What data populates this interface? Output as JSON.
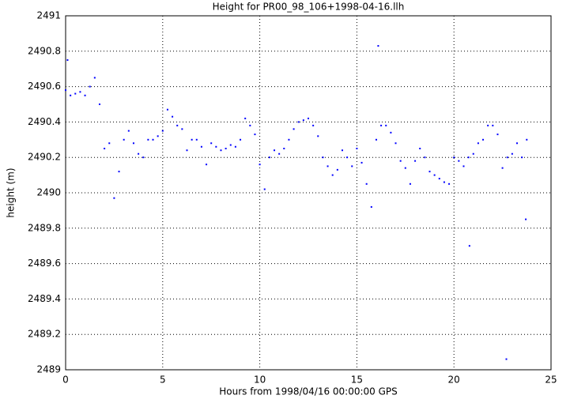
{
  "chart_data": {
    "type": "scatter",
    "title": "Height for PR00_98_106+1998-04-16.llh",
    "xlabel": "Hours from 1998/04/16 00:00:00 GPS",
    "ylabel": "height (m)",
    "xlim": [
      0,
      25
    ],
    "xticks": [
      0,
      5,
      10,
      15,
      20,
      25
    ],
    "ylim": [
      2489,
      2491
    ],
    "yticks": [
      2489,
      2489.2,
      2489.4,
      2489.6,
      2489.8,
      2490,
      2490.2,
      2490.4,
      2490.6,
      2490.8,
      2491
    ],
    "grid": true,
    "color": "#0000ff",
    "x": [
      0,
      0.25,
      0.5,
      0.75,
      1,
      1.25,
      1.5,
      1.75,
      2,
      2.25,
      2.5,
      2.75,
      3,
      3.25,
      3.5,
      3.75,
      4,
      4.25,
      4.5,
      4.75,
      5,
      5.25,
      5.5,
      5.75,
      6,
      6.25,
      6.5,
      6.75,
      7,
      7.25,
      7.5,
      7.75,
      8,
      8.25,
      8.5,
      8.75,
      9,
      9.25,
      9.5,
      9.75,
      10,
      10.25,
      10.5,
      10.75,
      11,
      11.25,
      11.5,
      11.75,
      12,
      12.25,
      12.5,
      12.75,
      13,
      13.25,
      13.5,
      13.75,
      14,
      14.25,
      14.5,
      14.75,
      15,
      15.25,
      15.5,
      15.75,
      16,
      16.25,
      16.5,
      16.75,
      17,
      17.25,
      17.5,
      17.75,
      18,
      18.25,
      18.5,
      18.75,
      19,
      19.25,
      19.5,
      19.75,
      20,
      20.25,
      20.5,
      20.75,
      21,
      21.25,
      21.5,
      21.75,
      22,
      22.25,
      22.5,
      22.75,
      23,
      23.25,
      23.5,
      23.75,
      16.1,
      20.8,
      22.7,
      23.7,
      0.1
    ],
    "values": [
      2490.58,
      2490.55,
      2490.56,
      2490.57,
      2490.55,
      2490.6,
      2490.65,
      2490.5,
      2490.25,
      2490.28,
      2489.97,
      2490.12,
      2490.3,
      2490.35,
      2490.28,
      2490.22,
      2490.2,
      2490.3,
      2490.3,
      2490.32,
      2490.35,
      2490.47,
      2490.43,
      2490.38,
      2490.36,
      2490.24,
      2490.3,
      2490.3,
      2490.26,
      2490.16,
      2490.28,
      2490.26,
      2490.24,
      2490.25,
      2490.27,
      2490.26,
      2490.3,
      2490.42,
      2490.38,
      2490.33,
      2490.16,
      2490.02,
      2490.2,
      2490.24,
      2490.22,
      2490.25,
      2490.3,
      2490.36,
      2490.4,
      2490.41,
      2490.42,
      2490.38,
      2490.32,
      2490.2,
      2490.15,
      2490.1,
      2490.13,
      2490.24,
      2490.2,
      2490.15,
      2490.25,
      2490.17,
      2490.05,
      2489.92,
      2490.3,
      2490.38,
      2490.38,
      2490.34,
      2490.28,
      2490.18,
      2490.14,
      2490.05,
      2490.18,
      2490.25,
      2490.2,
      2490.12,
      2490.1,
      2490.08,
      2490.06,
      2490.05,
      2490.2,
      2490.18,
      2490.15,
      2490.2,
      2490.22,
      2490.28,
      2490.3,
      2490.38,
      2490.38,
      2490.33,
      2490.14,
      2490.2,
      2490.22,
      2490.28,
      2490.2,
      2490.3,
      2490.83,
      2489.7,
      2489.06,
      2489.85,
      2490.75
    ]
  }
}
